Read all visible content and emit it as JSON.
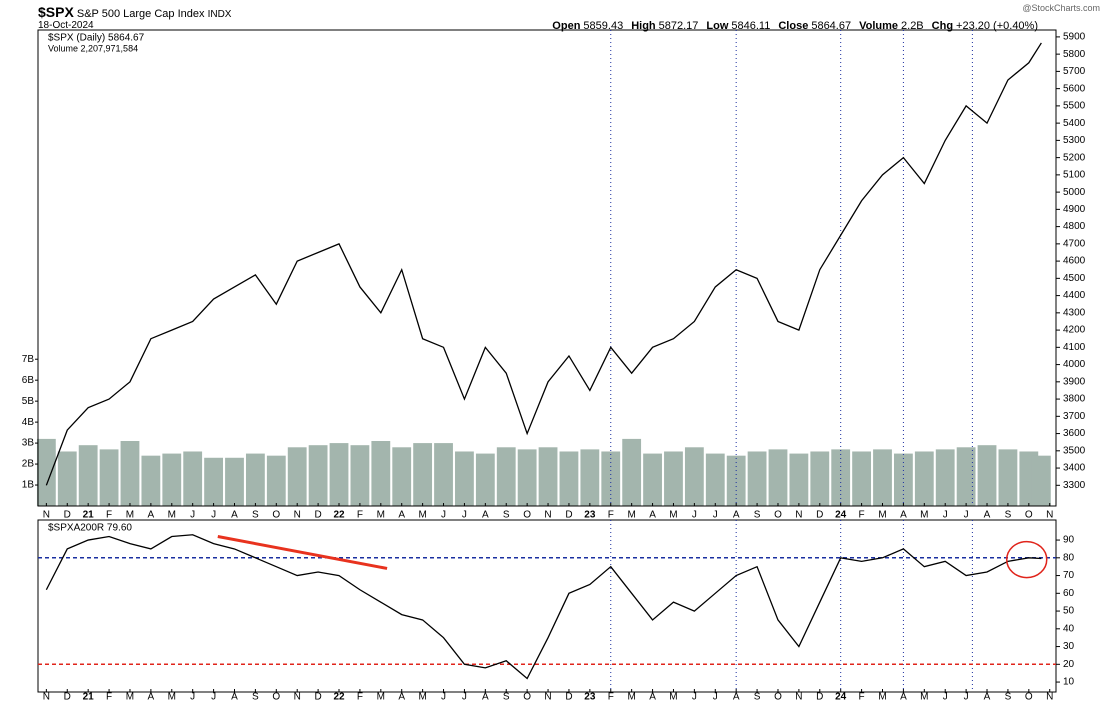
{
  "header": {
    "symbol": "$SPX",
    "name": "S&P 500 Large Cap Index",
    "exchange": "INDX",
    "date": "18-Oct-2024",
    "watermark": "@StockCharts.com",
    "stats": [
      {
        "label": "Open",
        "value": "5859.43"
      },
      {
        "label": "High",
        "value": "5872.17"
      },
      {
        "label": "Low",
        "value": "5846.11"
      },
      {
        "label": "Close",
        "value": "5864.67"
      },
      {
        "label": "Volume",
        "value": "2.2B"
      },
      {
        "label": "Chg",
        "value": "+23.20 (+0.40%)"
      }
    ]
  },
  "chart_data": [
    {
      "type": "line",
      "legend": [
        "$SPX (Daily) 5864.67",
        "Volume 2,207,971,584"
      ],
      "x": [
        0,
        1,
        2,
        3,
        4,
        5,
        6,
        7,
        8,
        9,
        10,
        11,
        12,
        13,
        14,
        15,
        16,
        17,
        18,
        19,
        20,
        21,
        22,
        23,
        24,
        25,
        26,
        27,
        28,
        29,
        30,
        31,
        32,
        33,
        34,
        35,
        36,
        37,
        38,
        39,
        40,
        41,
        42,
        43,
        44,
        45,
        46,
        47,
        47.6
      ],
      "xlim": [
        -0.4,
        48.3
      ],
      "xticks": [
        {
          "value": 0,
          "label": "N"
        },
        {
          "value": 1,
          "label": "D"
        },
        {
          "value": 2,
          "label": "21"
        },
        {
          "value": 3,
          "label": "F"
        },
        {
          "value": 4,
          "label": "M"
        },
        {
          "value": 5,
          "label": "A"
        },
        {
          "value": 6,
          "label": "M"
        },
        {
          "value": 7,
          "label": "J"
        },
        {
          "value": 8,
          "label": "J"
        },
        {
          "value": 9,
          "label": "A"
        },
        {
          "value": 10,
          "label": "S"
        },
        {
          "value": 11,
          "label": "O"
        },
        {
          "value": 12,
          "label": "N"
        },
        {
          "value": 13,
          "label": "D"
        },
        {
          "value": 14,
          "label": "22"
        },
        {
          "value": 15,
          "label": "F"
        },
        {
          "value": 16,
          "label": "M"
        },
        {
          "value": 17,
          "label": "A"
        },
        {
          "value": 18,
          "label": "M"
        },
        {
          "value": 19,
          "label": "J"
        },
        {
          "value": 20,
          "label": "J"
        },
        {
          "value": 21,
          "label": "A"
        },
        {
          "value": 22,
          "label": "S"
        },
        {
          "value": 23,
          "label": "O"
        },
        {
          "value": 24,
          "label": "N"
        },
        {
          "value": 25,
          "label": "D"
        },
        {
          "value": 26,
          "label": "23"
        },
        {
          "value": 27,
          "label": "F"
        },
        {
          "value": 28,
          "label": "M"
        },
        {
          "value": 29,
          "label": "A"
        },
        {
          "value": 30,
          "label": "M"
        },
        {
          "value": 31,
          "label": "J"
        },
        {
          "value": 32,
          "label": "J"
        },
        {
          "value": 33,
          "label": "A"
        },
        {
          "value": 34,
          "label": "S"
        },
        {
          "value": 35,
          "label": "O"
        },
        {
          "value": 36,
          "label": "N"
        },
        {
          "value": 37,
          "label": "D"
        },
        {
          "value": 38,
          "label": "24"
        },
        {
          "value": 39,
          "label": "F"
        },
        {
          "value": 40,
          "label": "M"
        },
        {
          "value": 41,
          "label": "A"
        },
        {
          "value": 42,
          "label": "M"
        },
        {
          "value": 43,
          "label": "J"
        },
        {
          "value": 44,
          "label": "J"
        },
        {
          "value": 45,
          "label": "A"
        },
        {
          "value": 46,
          "label": "S"
        },
        {
          "value": 47,
          "label": "O"
        },
        {
          "value": 48,
          "label": "N"
        }
      ],
      "ylim": [
        3180,
        5940
      ],
      "yticks": [
        3300,
        3400,
        3500,
        3600,
        3700,
        3800,
        3900,
        4000,
        4100,
        4200,
        4300,
        4400,
        4500,
        4600,
        4700,
        4800,
        4900,
        5000,
        5100,
        5200,
        5300,
        5400,
        5500,
        5600,
        5700,
        5800,
        5900
      ],
      "y2lim": [
        0,
        22.7
      ],
      "y2ticks": [
        {
          "value": 1,
          "label": "1B"
        },
        {
          "value": 2,
          "label": "2B"
        },
        {
          "value": 3,
          "label": "3B"
        },
        {
          "value": 4,
          "label": "4B"
        },
        {
          "value": 5,
          "label": "5B"
        },
        {
          "value": 6,
          "label": "6B"
        },
        {
          "value": 7,
          "label": "7B"
        }
      ],
      "vlines": [
        27,
        33,
        38,
        41,
        44.3
      ],
      "series": [
        {
          "name": "$SPX",
          "color": "#000000",
          "values": [
            3300,
            3620,
            3750,
            3800,
            3900,
            4150,
            4200,
            4250,
            4380,
            4450,
            4520,
            4350,
            4600,
            4650,
            4700,
            4450,
            4300,
            4550,
            4150,
            4100,
            3800,
            4100,
            3950,
            3600,
            3900,
            4050,
            3850,
            4100,
            3950,
            4100,
            4150,
            4250,
            4450,
            4550,
            4500,
            4250,
            4200,
            4550,
            4750,
            4950,
            5100,
            5200,
            5050,
            5300,
            5500,
            5400,
            5650,
            5750,
            5865
          ]
        },
        {
          "name": "Volume",
          "color": "#a3b5ad",
          "axis": "y2",
          "values": [
            3.2,
            2.6,
            2.9,
            2.7,
            3.1,
            2.4,
            2.5,
            2.6,
            2.3,
            2.3,
            2.5,
            2.4,
            2.8,
            2.9,
            3.0,
            2.9,
            3.1,
            2.8,
            3.0,
            3.0,
            2.6,
            2.5,
            2.8,
            2.7,
            2.8,
            2.6,
            2.7,
            2.6,
            3.2,
            2.5,
            2.6,
            2.8,
            2.5,
            2.4,
            2.6,
            2.7,
            2.5,
            2.6,
            2.7,
            2.6,
            2.7,
            2.5,
            2.6,
            2.7,
            2.8,
            2.9,
            2.7,
            2.6,
            2.4
          ]
        }
      ]
    },
    {
      "type": "line",
      "legend": [
        "$SPXA200R 79.60"
      ],
      "x": [
        0,
        1,
        2,
        3,
        4,
        5,
        6,
        7,
        8,
        9,
        10,
        11,
        12,
        13,
        14,
        15,
        16,
        17,
        18,
        19,
        20,
        21,
        22,
        23,
        24,
        25,
        26,
        27,
        28,
        29,
        30,
        31,
        32,
        33,
        34,
        35,
        36,
        37,
        38,
        39,
        40,
        41,
        42,
        43,
        44,
        45,
        46,
        47,
        47.6
      ],
      "xlim": [
        -0.4,
        48.3
      ],
      "xticks": [
        {
          "value": 0,
          "label": "N"
        },
        {
          "value": 1,
          "label": "D"
        },
        {
          "value": 2,
          "label": "21"
        },
        {
          "value": 3,
          "label": "F"
        },
        {
          "value": 4,
          "label": "M"
        },
        {
          "value": 5,
          "label": "A"
        },
        {
          "value": 6,
          "label": "M"
        },
        {
          "value": 7,
          "label": "J"
        },
        {
          "value": 8,
          "label": "J"
        },
        {
          "value": 9,
          "label": "A"
        },
        {
          "value": 10,
          "label": "S"
        },
        {
          "value": 11,
          "label": "O"
        },
        {
          "value": 12,
          "label": "N"
        },
        {
          "value": 13,
          "label": "D"
        },
        {
          "value": 14,
          "label": "22"
        },
        {
          "value": 15,
          "label": "F"
        },
        {
          "value": 16,
          "label": "M"
        },
        {
          "value": 17,
          "label": "A"
        },
        {
          "value": 18,
          "label": "M"
        },
        {
          "value": 19,
          "label": "J"
        },
        {
          "value": 20,
          "label": "J"
        },
        {
          "value": 21,
          "label": "A"
        },
        {
          "value": 22,
          "label": "S"
        },
        {
          "value": 23,
          "label": "O"
        },
        {
          "value": 24,
          "label": "N"
        },
        {
          "value": 25,
          "label": "D"
        },
        {
          "value": 26,
          "label": "23"
        },
        {
          "value": 27,
          "label": "F"
        },
        {
          "value": 28,
          "label": "M"
        },
        {
          "value": 29,
          "label": "A"
        },
        {
          "value": 30,
          "label": "M"
        },
        {
          "value": 31,
          "label": "J"
        },
        {
          "value": 32,
          "label": "J"
        },
        {
          "value": 33,
          "label": "A"
        },
        {
          "value": 34,
          "label": "S"
        },
        {
          "value": 35,
          "label": "O"
        },
        {
          "value": 36,
          "label": "N"
        },
        {
          "value": 37,
          "label": "D"
        },
        {
          "value": 38,
          "label": "24"
        },
        {
          "value": 39,
          "label": "F"
        },
        {
          "value": 40,
          "label": "M"
        },
        {
          "value": 41,
          "label": "A"
        },
        {
          "value": 42,
          "label": "M"
        },
        {
          "value": 43,
          "label": "J"
        },
        {
          "value": 44,
          "label": "J"
        },
        {
          "value": 45,
          "label": "A"
        },
        {
          "value": 46,
          "label": "S"
        },
        {
          "value": 47,
          "label": "O"
        },
        {
          "value": 48,
          "label": "N"
        }
      ],
      "ylim": [
        4.4,
        101.3
      ],
      "yticks": [
        10,
        20,
        30,
        40,
        50,
        60,
        70,
        80,
        90
      ],
      "vlines": [
        27,
        33,
        38,
        41,
        44.3
      ],
      "hlines": [
        {
          "value": 80,
          "color": "#1a2fa0"
        },
        {
          "value": 20,
          "color": "#e0241b"
        }
      ],
      "trendline": {
        "x": [
          8.2,
          16.3
        ],
        "y": [
          92,
          74
        ],
        "color": "#e8321e"
      },
      "circle": {
        "x": 46.9,
        "y": 79,
        "color": "#e0241b"
      },
      "series": [
        {
          "name": "$SPXA200R",
          "color": "#000000",
          "values": [
            62,
            85,
            90,
            92,
            88,
            85,
            92,
            93,
            88,
            85,
            80,
            75,
            70,
            72,
            70,
            62,
            55,
            48,
            45,
            35,
            20,
            18,
            22,
            12,
            35,
            60,
            65,
            75,
            60,
            45,
            55,
            50,
            60,
            70,
            75,
            45,
            30,
            55,
            80,
            78,
            80,
            85,
            75,
            78,
            70,
            72,
            78,
            80,
            79.6
          ]
        }
      ]
    }
  ]
}
